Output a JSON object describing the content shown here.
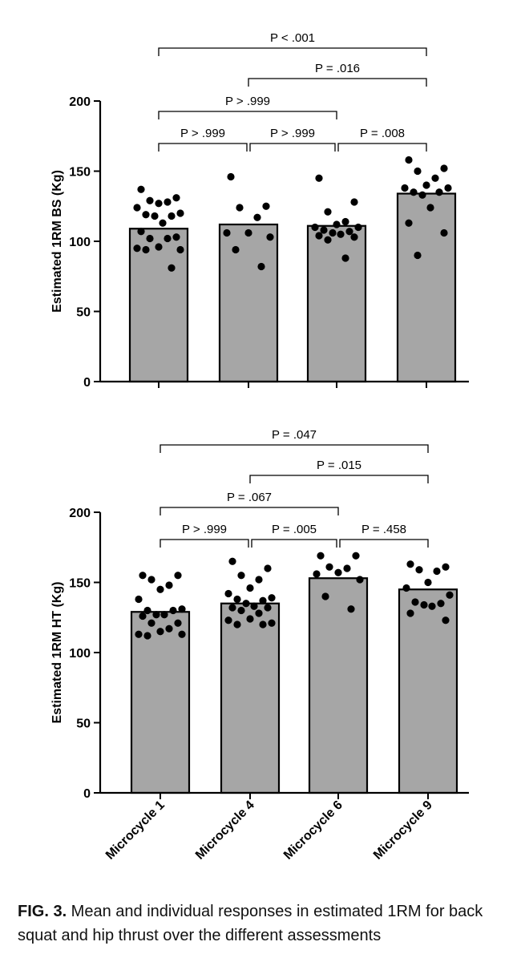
{
  "chart_data": [
    {
      "type": "bar",
      "ylabel": "Estimated 1RM BS (Kg)",
      "ylim": [
        0,
        200
      ],
      "yticks": [
        0,
        50,
        100,
        150,
        200
      ],
      "categories": [
        "Microcycle 1",
        "Microcycle 4",
        "Microcycle 6",
        "Microcycle 9"
      ],
      "values": [
        109,
        112,
        111,
        134
      ],
      "points": [
        [
          137,
          131,
          129,
          128,
          127,
          124,
          120,
          119,
          118,
          118,
          113,
          107,
          103,
          102,
          102,
          96,
          95,
          94,
          94,
          81
        ],
        [
          146,
          125,
          124,
          117,
          106,
          106,
          103,
          94,
          82
        ],
        [
          145,
          128,
          121,
          114,
          112,
          110,
          110,
          108,
          107,
          106,
          105,
          104,
          103,
          101,
          88
        ],
        [
          158,
          152,
          150,
          145,
          140,
          138,
          138,
          135,
          135,
          133,
          124,
          113,
          106,
          90
        ]
      ],
      "comparisons": [
        {
          "from": 0,
          "to": 3,
          "label": "P < .001"
        },
        {
          "from": 1,
          "to": 3,
          "label": "P = .016"
        },
        {
          "from": 0,
          "to": 2,
          "label": "P > .999"
        },
        {
          "from": 0,
          "to": 1,
          "label": "P > .999"
        },
        {
          "from": 1,
          "to": 2,
          "label": "P > .999"
        },
        {
          "from": 2,
          "to": 3,
          "label": "P = .008"
        }
      ]
    },
    {
      "type": "bar",
      "ylabel": "Estimated 1RM HT (Kg)",
      "ylim": [
        0,
        200
      ],
      "yticks": [
        0,
        50,
        100,
        150,
        200
      ],
      "categories": [
        "Microcycle 1",
        "Microcycle 4",
        "Microcycle 6",
        "Microcycle 9"
      ],
      "values": [
        129,
        135,
        153,
        145
      ],
      "points": [
        [
          155,
          155,
          152,
          148,
          145,
          138,
          131,
          130,
          130,
          127,
          127,
          126,
          121,
          121,
          117,
          115,
          113,
          113,
          112
        ],
        [
          165,
          160,
          155,
          152,
          146,
          142,
          139,
          138,
          137,
          135,
          133,
          132,
          132,
          130,
          128,
          124,
          123,
          121,
          120,
          120
        ],
        [
          169,
          169,
          161,
          160,
          157,
          156,
          152,
          140,
          131
        ],
        [
          163,
          161,
          159,
          158,
          150,
          146,
          141,
          136,
          135,
          134,
          133,
          128,
          123
        ]
      ],
      "comparisons": [
        {
          "from": 0,
          "to": 3,
          "label": "P = .047"
        },
        {
          "from": 1,
          "to": 3,
          "label": "P = .015"
        },
        {
          "from": 0,
          "to": 2,
          "label": "P = .067"
        },
        {
          "from": 0,
          "to": 1,
          "label": "P > .999"
        },
        {
          "from": 1,
          "to": 2,
          "label": "P = .005"
        },
        {
          "from": 2,
          "to": 3,
          "label": "P = .458"
        }
      ]
    }
  ],
  "caption": {
    "label": "FIG. 3.",
    "text": " Mean and individual responses in estimated 1RM for back squat and hip thrust over the different assessments"
  }
}
